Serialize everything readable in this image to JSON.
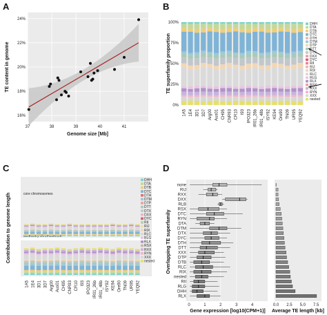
{
  "panels": [
    "A",
    "B",
    "C",
    "D"
  ],
  "chart_data": [
    {
      "panel": "A",
      "type": "scatter",
      "xlabel": "Genome size [Mb]",
      "ylabel": "TE content in genome",
      "xlim": [
        37,
        42
      ],
      "ylim": [
        15.5,
        24.5
      ],
      "xticks": [
        37,
        38,
        39,
        40,
        41
      ],
      "yticks": [
        "16%",
        "18%",
        "20%",
        "22%",
        "24%"
      ],
      "ytick_values": [
        16,
        18,
        20,
        22,
        24
      ],
      "points": [
        {
          "x": 37.05,
          "y": 16.5
        },
        {
          "x": 37.9,
          "y": 18.4
        },
        {
          "x": 37.95,
          "y": 18.6
        },
        {
          "x": 38.2,
          "y": 17.3
        },
        {
          "x": 38.25,
          "y": 19.1
        },
        {
          "x": 38.3,
          "y": 18.9
        },
        {
          "x": 38.4,
          "y": 17.7
        },
        {
          "x": 38.55,
          "y": 18.0
        },
        {
          "x": 38.6,
          "y": 17.9
        },
        {
          "x": 38.7,
          "y": 17.6
        },
        {
          "x": 39.2,
          "y": 19.6
        },
        {
          "x": 39.5,
          "y": 19.2
        },
        {
          "x": 39.6,
          "y": 20.3
        },
        {
          "x": 39.65,
          "y": 18.9
        },
        {
          "x": 39.7,
          "y": 19.0
        },
        {
          "x": 39.75,
          "y": 19.5
        },
        {
          "x": 39.9,
          "y": 19.7
        },
        {
          "x": 40.6,
          "y": 19.8
        },
        {
          "x": 41.0,
          "y": 20.8
        },
        {
          "x": 41.6,
          "y": 23.9
        }
      ],
      "trend": {
        "x": [
          37.05,
          41.6
        ],
        "y": [
          16.7,
          22.0
        ]
      },
      "colors": {
        "points": "#111111",
        "trend": "#a52a2a",
        "band": "#c8c8c8"
      }
    },
    {
      "panel": "B",
      "type": "bar",
      "stacked": true,
      "ylabel": "TE superfamily proportion",
      "yticks": [
        "0%",
        "25%",
        "50%",
        "75%",
        "100%"
      ],
      "categories": [
        "1A5",
        "1E4",
        "3D1",
        "3D7",
        "Arg00",
        "Aus01",
        "CH95",
        "CNR93",
        "CR10",
        "I93",
        "IPO323",
        "IR01_26b",
        "IR01_48b",
        "ISY92",
        "KE94",
        "Ore90",
        "TN09",
        "UR95",
        "YEQ92"
      ],
      "legend": [
        "DHH",
        "DTA",
        "DTB",
        "DTC",
        "DTH",
        "DTM",
        "DTP",
        "DTT",
        "DTX",
        "DXX",
        "DYC",
        "RII",
        "RIJ",
        "RIX",
        "RLC",
        "RLG",
        "RLX",
        "RSX",
        "RXX",
        "RYN",
        "XXX",
        "nested"
      ],
      "segments": [
        {
          "name": "nested",
          "value": 0.05,
          "color": "#e6e06a"
        },
        {
          "name": "XXX",
          "value": 0.05,
          "color": "#d7d7d7"
        },
        {
          "name": "RYN",
          "value": 0.02,
          "color": "#f3b5c6"
        },
        {
          "name": "RXX",
          "value": 0.04,
          "color": "#c9b2de"
        },
        {
          "name": "RLX",
          "value": 0.04,
          "color": "#b093c9"
        },
        {
          "name": "RLG",
          "value": 0.03,
          "color": "#e8c6e2"
        },
        {
          "name": "RLC",
          "value": 0.21,
          "color": "#dadada"
        },
        {
          "name": "RIX",
          "value": 0.05,
          "color": "#f2d7b6"
        },
        {
          "name": "DTX",
          "value": 0.08,
          "color": "#c2c7cb"
        },
        {
          "name": "DTT",
          "value": 0.04,
          "color": "#a8cbb6"
        },
        {
          "name": "DTM",
          "value": 0.03,
          "color": "#9ec8da"
        },
        {
          "name": "DTC",
          "value": 0.24,
          "color": "#7fb4d6"
        },
        {
          "name": "DTB",
          "value": 0.04,
          "color": "#f2cd77"
        },
        {
          "name": "DTA",
          "value": 0.06,
          "color": "#c3d99a"
        },
        {
          "name": "DHH",
          "value": 0.02,
          "color": "#7fd3c8"
        }
      ],
      "arrows": [
        "DTC",
        "RLC"
      ]
    },
    {
      "panel": "C",
      "type": "bar",
      "stacked": true,
      "ylabel": "Contribution to genome length",
      "facets": [
        "core chromosomes",
        "accessory chromosomes"
      ],
      "categories": [
        "1A5",
        "1E4",
        "3D1",
        "3D7",
        "Arg00",
        "Aus01",
        "CH95",
        "CNR93",
        "CR10",
        "I93",
        "IPO323",
        "IR01_26b",
        "IR01_48b",
        "ISY92",
        "KE94",
        "Ore90",
        "TN09",
        "UR95",
        "YEQ92"
      ],
      "legend": [
        "DHH",
        "DTA",
        "DTB",
        "DTC",
        "DTH",
        "DTM",
        "DTP",
        "DTT",
        "DTX",
        "DXX",
        "DYC",
        "RII",
        "RIJ",
        "RIX",
        "RLC",
        "RLG",
        "RLX",
        "RSX",
        "RXX",
        "RYN",
        "XXX",
        "nested"
      ],
      "core_values": [
        0.18,
        0.19,
        0.18,
        0.18,
        0.19,
        0.18,
        0.18,
        0.19,
        0.18,
        0.18,
        0.18,
        0.18,
        0.18,
        0.18,
        0.19,
        0.18,
        0.18,
        0.19,
        0.18
      ],
      "accessory_values": [
        0.4,
        0.41,
        0.39,
        0.4,
        0.4,
        0.41,
        0.4,
        0.39,
        0.4,
        0.41,
        0.4,
        0.4,
        0.41,
        0.4,
        0.39,
        0.41,
        0.4,
        0.4,
        0.39
      ]
    },
    {
      "panel": "D",
      "type": "bar",
      "ylabel": "Overlapping TE superfamily",
      "xlabel_left": "Gene expression [log10(CPM+1)]",
      "xlabel_right": "Average TE length [kb]",
      "xticks_left": [
        "0",
        "1",
        "2",
        "3",
        "4"
      ],
      "xticks_right": [
        "0.0",
        "2.5",
        "5.0",
        "7.5"
      ],
      "superfamilies": [
        "none",
        "RIJ",
        "RXX",
        "DXX",
        "RLB",
        "RSX",
        "DTC",
        "RYN",
        "DTA",
        "DTM",
        "DTX",
        "DYC",
        "DTH",
        "DTT",
        "XXX",
        "DTP",
        "DTB",
        "RLC",
        "RIX",
        "nested",
        "RII",
        "RLG",
        "DHH",
        "RLX"
      ],
      "boxes": [
        {
          "q1": 1.5,
          "median": 1.9,
          "q3": 2.4,
          "lo": 0.05,
          "hi": 4.6
        },
        {
          "q1": 1.2,
          "median": 1.4,
          "q3": 1.7,
          "lo": 0.9,
          "hi": 1.8
        },
        {
          "q1": 1.1,
          "median": 1.5,
          "q3": 1.8,
          "lo": 0.6,
          "hi": 2.1
        },
        {
          "q1": 2.3,
          "median": 3.2,
          "q3": 3.6,
          "lo": 2.1,
          "hi": 3.7
        },
        {
          "q1": 1.9,
          "median": 2.0,
          "q3": 2.1,
          "lo": 1.8,
          "hi": 2.2
        },
        {
          "q1": 0.6,
          "median": 1.2,
          "q3": 1.9,
          "lo": 0.05,
          "hi": 2.4
        },
        {
          "q1": 1.1,
          "median": 1.6,
          "q3": 2.2,
          "lo": 0.05,
          "hi": 3.4
        },
        {
          "q1": 0.5,
          "median": 1.3,
          "q3": 1.6,
          "lo": 0.05,
          "hi": 2.4
        },
        {
          "q1": 0.7,
          "median": 1.0,
          "q3": 1.3,
          "lo": 0.4,
          "hi": 1.6
        },
        {
          "q1": 1.3,
          "median": 1.9,
          "q3": 2.4,
          "lo": 0.05,
          "hi": 3.3
        },
        {
          "q1": 0.9,
          "median": 1.4,
          "q3": 1.8,
          "lo": 0.05,
          "hi": 2.6
        },
        {
          "q1": 1.0,
          "median": 1.4,
          "q3": 1.9,
          "lo": 0.05,
          "hi": 2.4
        },
        {
          "q1": 0.8,
          "median": 1.3,
          "q3": 2.0,
          "lo": 0.05,
          "hi": 2.8
        },
        {
          "q1": 0.7,
          "median": 1.1,
          "q3": 1.8,
          "lo": 0.05,
          "hi": 2.6
        },
        {
          "q1": 0.6,
          "median": 1.0,
          "q3": 1.6,
          "lo": 0.05,
          "hi": 2.2
        },
        {
          "q1": 0.5,
          "median": 0.9,
          "q3": 1.4,
          "lo": 0.05,
          "hi": 2.3
        },
        {
          "q1": 0.3,
          "median": 0.8,
          "q3": 1.3,
          "lo": 0.05,
          "hi": 2.2
        },
        {
          "q1": 0.4,
          "median": 0.9,
          "q3": 1.5,
          "lo": 0.05,
          "hi": 2.6
        },
        {
          "q1": 0.3,
          "median": 0.8,
          "q3": 1.4,
          "lo": 0.05,
          "hi": 2.4
        },
        {
          "q1": 0.4,
          "median": 0.8,
          "q3": 1.2,
          "lo": 0.05,
          "hi": 2.2
        },
        {
          "q1": 0.3,
          "median": 0.6,
          "q3": 1.0,
          "lo": 0.05,
          "hi": 1.8
        },
        {
          "q1": 0.2,
          "median": 0.6,
          "q3": 1.0,
          "lo": 0.05,
          "hi": 1.9
        },
        {
          "q1": 0.2,
          "median": 0.5,
          "q3": 0.9,
          "lo": 0.05,
          "hi": 1.8
        },
        {
          "q1": 0.5,
          "median": 1.0,
          "q3": 1.3,
          "lo": 0.05,
          "hi": 2.0
        }
      ],
      "lengths": [
        0.0,
        0.4,
        0.4,
        0.5,
        0.6,
        0.8,
        1.0,
        1.1,
        1.2,
        1.3,
        1.4,
        1.5,
        1.6,
        1.7,
        1.9,
        2.0,
        2.2,
        2.4,
        2.6,
        2.7,
        2.9,
        3.1,
        3.6,
        7.6
      ]
    }
  ]
}
